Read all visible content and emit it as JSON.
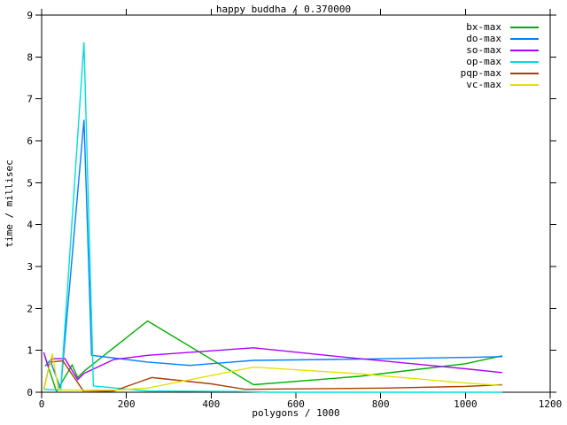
{
  "title": "happy buddha / 0.370000",
  "axes": {
    "x": {
      "label": "polygons / 1000",
      "min": 0,
      "max": 1200,
      "ticks": [
        0,
        200,
        400,
        600,
        800,
        1000,
        1200
      ]
    },
    "y": {
      "label": "time / millisec",
      "min": 0,
      "max": 9,
      "ticks": [
        0,
        1,
        2,
        3,
        4,
        5,
        6,
        7,
        8,
        9
      ]
    }
  },
  "colors": {
    "foreground": "#000000",
    "background": "#ffffff"
  },
  "chart_data": {
    "type": "line",
    "title": "happy buddha / 0.370000",
    "xlabel": "polygons / 1000",
    "ylabel": "time / millisec",
    "xlim": [
      0,
      1200
    ],
    "ylim": [
      0,
      9
    ],
    "grid": false,
    "legend_position": "top-right-inside",
    "tick_direction": "out",
    "series": [
      {
        "name": "bx-max",
        "color": "#00b000",
        "points": [
          [
            8,
            0.85
          ],
          [
            35,
            0.02
          ],
          [
            72,
            0.65
          ],
          [
            85,
            0.35
          ],
          [
            100,
            0.5
          ],
          [
            250,
            1.7
          ],
          [
            500,
            0.18
          ],
          [
            750,
            0.38
          ],
          [
            1000,
            0.68
          ],
          [
            1087,
            0.87
          ]
        ]
      },
      {
        "name": "do-max",
        "color": "#0080ff",
        "points": [
          [
            8,
            0.62
          ],
          [
            20,
            0.76
          ],
          [
            45,
            0.08
          ],
          [
            100,
            6.5
          ],
          [
            118,
            0.88
          ],
          [
            250,
            0.72
          ],
          [
            350,
            0.64
          ],
          [
            500,
            0.76
          ],
          [
            750,
            0.79
          ],
          [
            1000,
            0.83
          ],
          [
            1087,
            0.85
          ]
        ]
      },
      {
        "name": "so-max",
        "color": "#aa00ff",
        "points": [
          [
            5,
            0.95
          ],
          [
            15,
            0.62
          ],
          [
            25,
            0.8
          ],
          [
            55,
            0.8
          ],
          [
            85,
            0.3
          ],
          [
            100,
            0.45
          ],
          [
            170,
            0.78
          ],
          [
            250,
            0.88
          ],
          [
            500,
            1.06
          ],
          [
            750,
            0.8
          ],
          [
            1000,
            0.56
          ],
          [
            1087,
            0.47
          ]
        ]
      },
      {
        "name": "op-max",
        "color": "#00dddd",
        "points": [
          [
            5,
            0.07
          ],
          [
            45,
            0.05
          ],
          [
            100,
            8.35
          ],
          [
            122,
            0.15
          ],
          [
            250,
            0.03
          ],
          [
            460,
            0.02
          ],
          [
            540,
            0
          ],
          [
            1087,
            0
          ]
        ]
      },
      {
        "name": "pqp-max",
        "color": "#a84000",
        "points": [
          [
            5,
            0.06
          ],
          [
            20,
            0.72
          ],
          [
            50,
            0.75
          ],
          [
            100,
            0.01
          ],
          [
            170,
            0.03
          ],
          [
            260,
            0.35
          ],
          [
            400,
            0.2
          ],
          [
            480,
            0.07
          ],
          [
            810,
            0.1
          ],
          [
            1000,
            0.14
          ],
          [
            1087,
            0.18
          ]
        ]
      },
      {
        "name": "vc-max",
        "color": "#e2e200",
        "points": [
          [
            5,
            0.05
          ],
          [
            25,
            0.92
          ],
          [
            40,
            0.05
          ],
          [
            170,
            0.05
          ],
          [
            250,
            0.1
          ],
          [
            500,
            0.6
          ],
          [
            750,
            0.44
          ],
          [
            1000,
            0.22
          ],
          [
            1087,
            0.16
          ]
        ]
      }
    ]
  }
}
